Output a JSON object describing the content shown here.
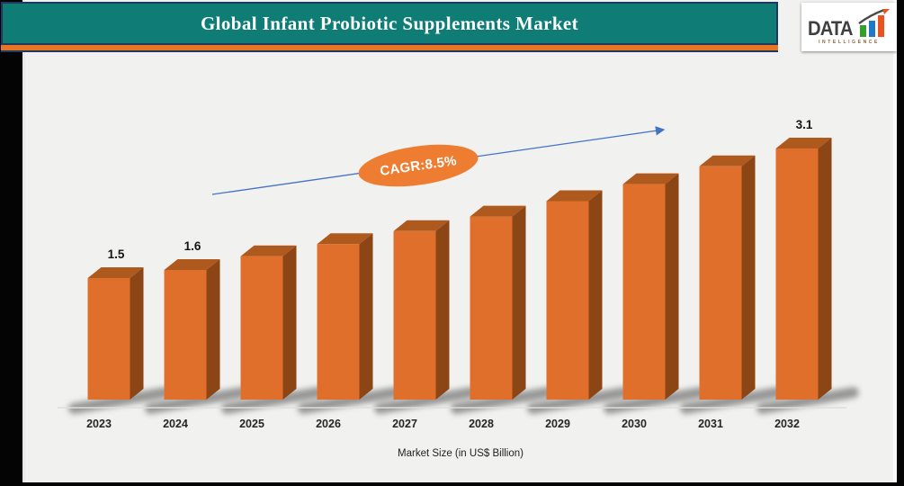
{
  "header": {
    "title": "Global Infant Probiotic Supplements Market"
  },
  "logo": {
    "text": "DATA",
    "subtext": "INTELLIGENCE",
    "bar_colors": [
      "#33A02C",
      "#1F78C8",
      "#E8531F"
    ]
  },
  "chart_data": {
    "type": "bar",
    "style": "3d-column",
    "title": "Global Infant Probiotic Supplements Market",
    "xlabel": "Market Size (in US$ Billion)",
    "unit": "US$ Billion",
    "categories": [
      "2023",
      "2024",
      "2025",
      "2026",
      "2027",
      "2028",
      "2029",
      "2030",
      "2031",
      "2032"
    ],
    "values": [
      1.5,
      1.6,
      1.77,
      1.92,
      2.08,
      2.26,
      2.45,
      2.66,
      2.88,
      3.1
    ],
    "bars": [
      {
        "year": "2023",
        "value": 1.5,
        "label": "1.5"
      },
      {
        "year": "2024",
        "value": 1.6,
        "label": "1.6"
      },
      {
        "year": "2025",
        "value": 1.77,
        "label": ""
      },
      {
        "year": "2026",
        "value": 1.92,
        "label": ""
      },
      {
        "year": "2027",
        "value": 2.08,
        "label": ""
      },
      {
        "year": "2028",
        "value": 2.26,
        "label": ""
      },
      {
        "year": "2029",
        "value": 2.45,
        "label": ""
      },
      {
        "year": "2030",
        "value": 2.66,
        "label": ""
      },
      {
        "year": "2031",
        "value": 2.88,
        "label": ""
      },
      {
        "year": "2032",
        "value": 3.1,
        "label": "3.1"
      }
    ],
    "value_labels_shown_for": [
      "2023",
      "2024",
      "2032"
    ],
    "annotation": {
      "cagr_label": "CAGR:8.5%"
    },
    "ylim": [
      0,
      3.5
    ],
    "grid": false,
    "legend": false,
    "colors": {
      "bar_front": "#DF6F2B",
      "bar_top": "#AE591E",
      "bar_side": "#8C4515",
      "trend_arrow": "#4472C4",
      "cagr_ellipse": "#EE7D31",
      "header_band": "#0F7C76",
      "header_stripe": "#E87524",
      "slide_background": "#F1F1F0"
    }
  }
}
